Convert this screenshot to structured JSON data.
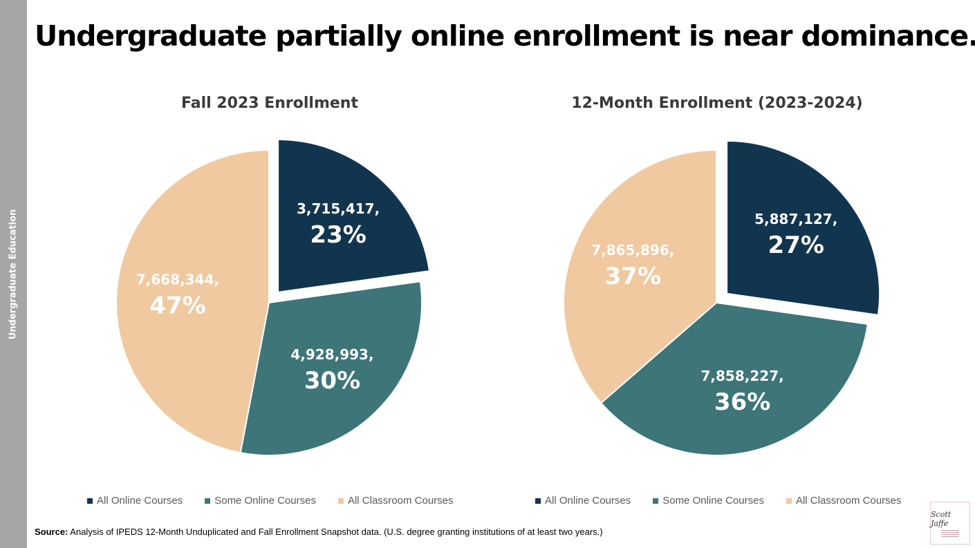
{
  "sidebar": {
    "label": "Undergraduate Education"
  },
  "header": {
    "title": "Undergraduate partially online enrollment is near dominance."
  },
  "colors": {
    "all_online": "#12354f",
    "some_online": "#3d7578",
    "all_classroom": "#f0c9a0"
  },
  "chart_data": [
    {
      "type": "pie",
      "title": "Fall 2023 Enrollment",
      "categories": [
        "All Online Courses",
        "Some Online Courses",
        "All Classroom Courses"
      ],
      "values": [
        3715417,
        4928993,
        7668344
      ],
      "labels": [
        "3,715,417,",
        "4,928,993,",
        "7,668,344,"
      ],
      "percents": [
        "23%",
        "30%",
        "47%"
      ],
      "exploded": "All Online Courses",
      "legend": "bottom"
    },
    {
      "type": "pie",
      "title": "12-Month Enrollment (2023-2024)",
      "categories": [
        "All Online Courses",
        "Some Online Courses",
        "All Classroom Courses"
      ],
      "values": [
        5887127,
        7858227,
        7865896
      ],
      "labels": [
        "5,887,127,",
        "7,858,227,",
        "7,865,896,"
      ],
      "percents": [
        "27%",
        "36%",
        "37%"
      ],
      "exploded": "All Online Courses",
      "legend": "bottom"
    }
  ],
  "source": {
    "prefix": "Source:",
    "text": " Analysis of IPEDS 12-Month Unduplicated and Fall Enrollment Snapshot data. (U.S. degree granting institutions of at least two years.)"
  },
  "logo": {
    "signature": "Scott Jaffe"
  }
}
